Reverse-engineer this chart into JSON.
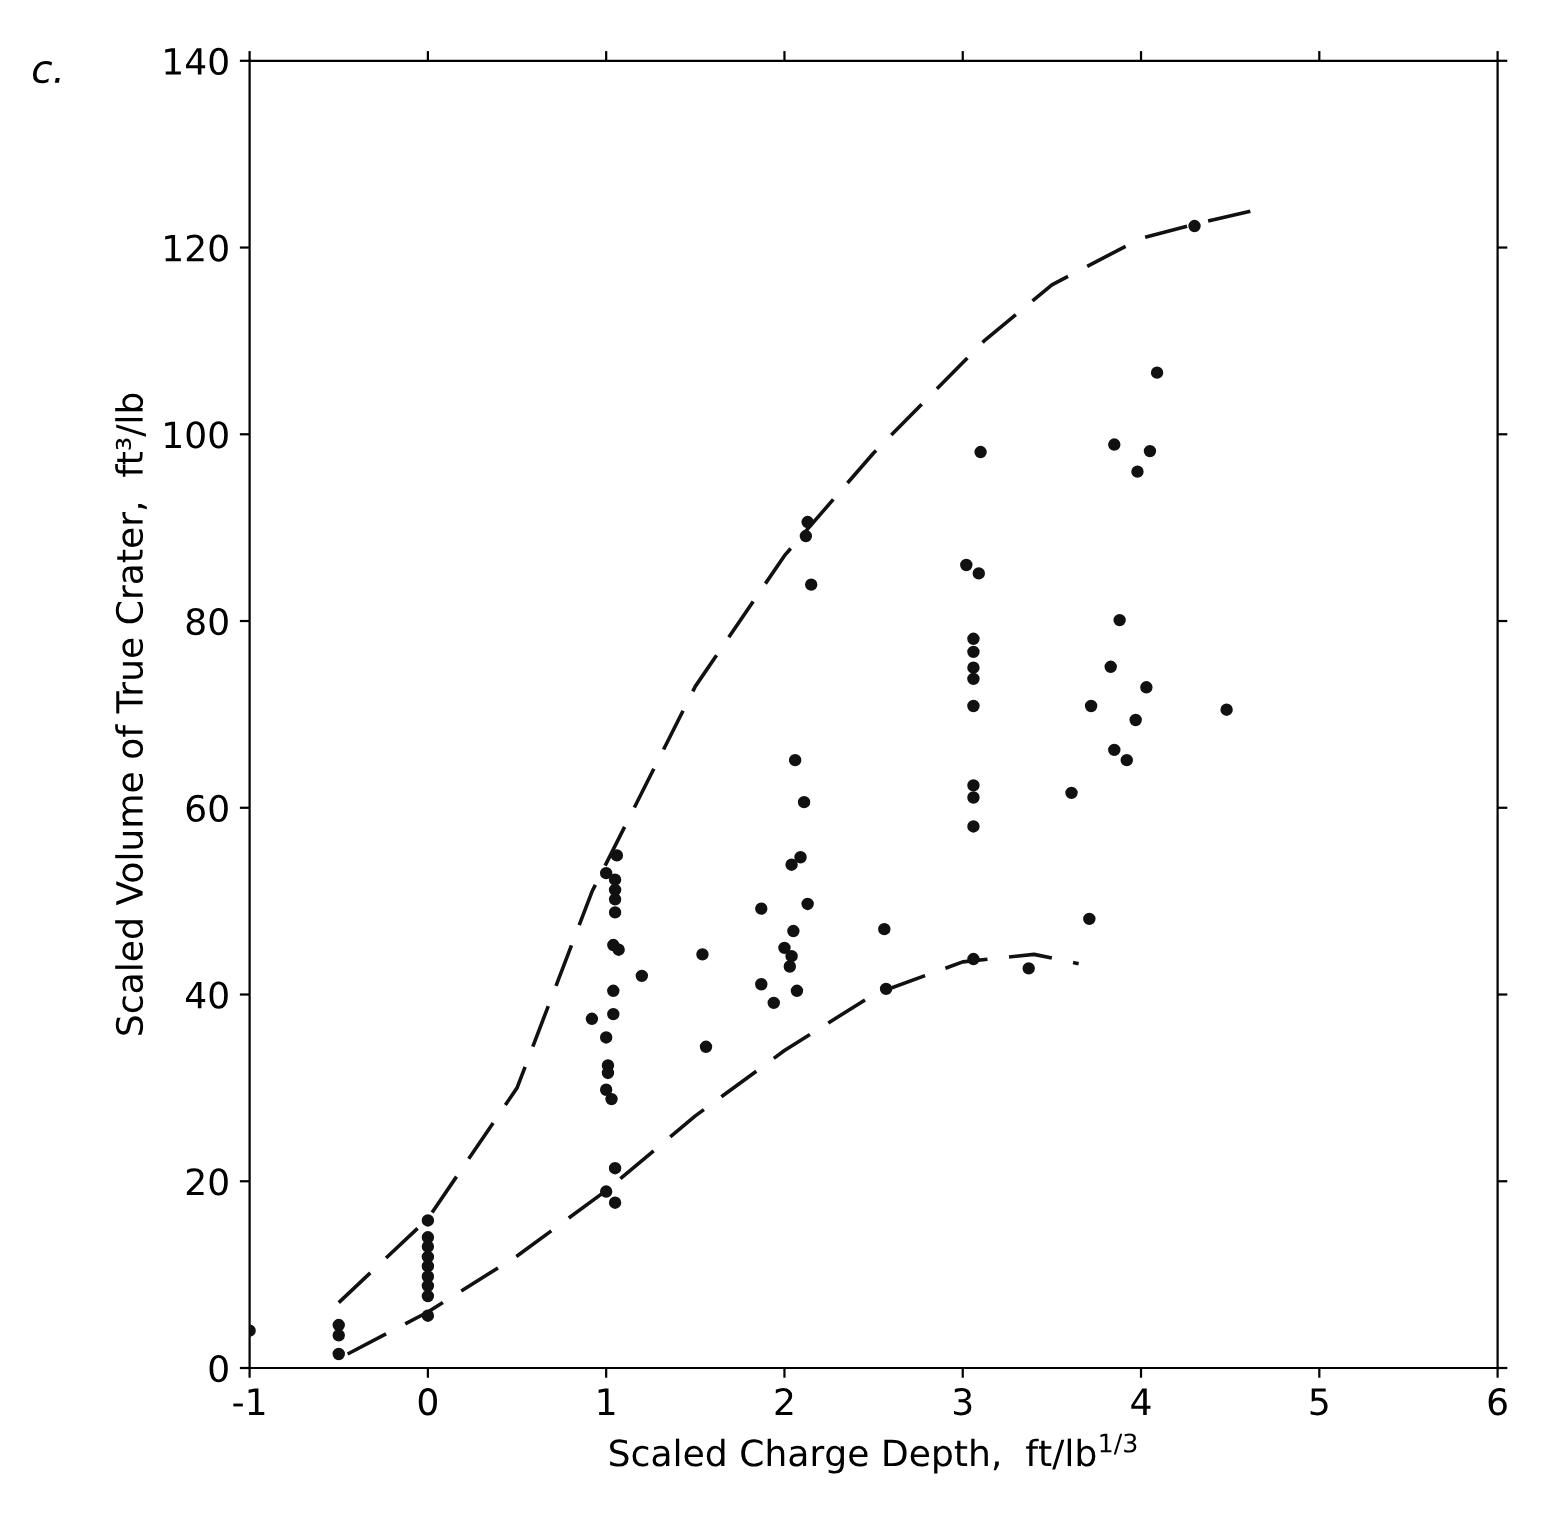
{
  "chart_data": {
    "type": "scatter",
    "xlabel": "Scaled Charge Depth,  ft/lb$^{1/3}$",
    "ylabel": "Scaled Volume of True Crater,  ft³/lb",
    "annotations": [
      "c."
    ],
    "xlim": [
      -1,
      6
    ],
    "ylim": [
      0,
      140
    ],
    "xticks": [
      {
        "value": -1,
        "label": "-1"
      },
      0,
      1,
      2,
      3,
      4,
      5,
      6
    ],
    "yticks": [
      0,
      20,
      40,
      60,
      80,
      100,
      120,
      140
    ],
    "grid": false,
    "marker": "circle",
    "series": [
      {
        "color": "#111111",
        "x": [
          -1,
          -0.5,
          -0.5,
          -0.5,
          0,
          0,
          0,
          0,
          0,
          0,
          0,
          0,
          0,
          1.06,
          1.0,
          1.05,
          1.05,
          1.05,
          1.05,
          1.04,
          1.07,
          1.04,
          1.04,
          0.92,
          1.0,
          1.01,
          1.01,
          1.0,
          1.03,
          1.05,
          1.0,
          1.05,
          1.2,
          1.54,
          1.56,
          1.87,
          1.87,
          1.94,
          2.0,
          2.03,
          2.04,
          2.04,
          2.05,
          2.06,
          2.07,
          2.09,
          2.11,
          2.12,
          2.13,
          2.13,
          2.15,
          2.56,
          2.57,
          3.02,
          3.06,
          3.06,
          3.06,
          3.06,
          3.06,
          3.06,
          3.06,
          3.06,
          3.06,
          3.09,
          3.1,
          3.37,
          3.61,
          3.71,
          3.72,
          3.83,
          3.85,
          3.85,
          3.88,
          3.92,
          3.97,
          3.98,
          4.03,
          4.05,
          4.09,
          4.3,
          4.48
        ],
        "values": [
          4,
          4.6,
          3.5,
          1.5,
          15.8,
          14,
          13,
          11.9,
          10.9,
          9.8,
          8.8,
          7.7,
          5.6,
          54.9,
          53,
          52.3,
          51.2,
          50.2,
          48.8,
          45.3,
          44.8,
          40.4,
          37.9,
          37.4,
          35.4,
          32.4,
          31.6,
          29.8,
          28.8,
          21.4,
          18.9,
          17.7,
          42,
          44.3,
          34.4,
          49.2,
          41.1,
          39.1,
          45,
          43,
          44.1,
          53.9,
          46.8,
          65.1,
          40.4,
          54.7,
          60.6,
          89.1,
          90.6,
          49.7,
          83.9,
          47,
          40.6,
          86,
          78.1,
          76.7,
          75,
          73.8,
          70.9,
          62.4,
          61.1,
          58,
          43.8,
          85.1,
          98.1,
          42.8,
          61.6,
          48.1,
          70.9,
          75.1,
          98.9,
          66.2,
          80.1,
          65.1,
          69.4,
          96,
          72.9,
          98.2,
          106.6,
          122.3,
          70.5
        ]
      },
      {
        "type": "line",
        "color": "#111111",
        "line_style": "dashed",
        "marker": "none",
        "x": [
          -0.5,
          0,
          0.5,
          0.92,
          1.5,
          2,
          2.5,
          3.12,
          3.5,
          4,
          4.3,
          4.64
        ],
        "values": [
          7,
          16,
          30,
          51,
          73,
          87,
          98,
          110,
          116,
          121,
          122.5,
          124
        ]
      },
      {
        "type": "line",
        "color": "#111111",
        "line_style": "dashed",
        "marker": "none",
        "x": [
          -0.45,
          0,
          0.5,
          1,
          1.5,
          2,
          2.5,
          3,
          3.4,
          3.65
        ],
        "values": [
          1.5,
          6,
          12,
          19,
          27,
          34,
          40,
          43.5,
          44.3,
          43.3
        ]
      }
    ]
  }
}
